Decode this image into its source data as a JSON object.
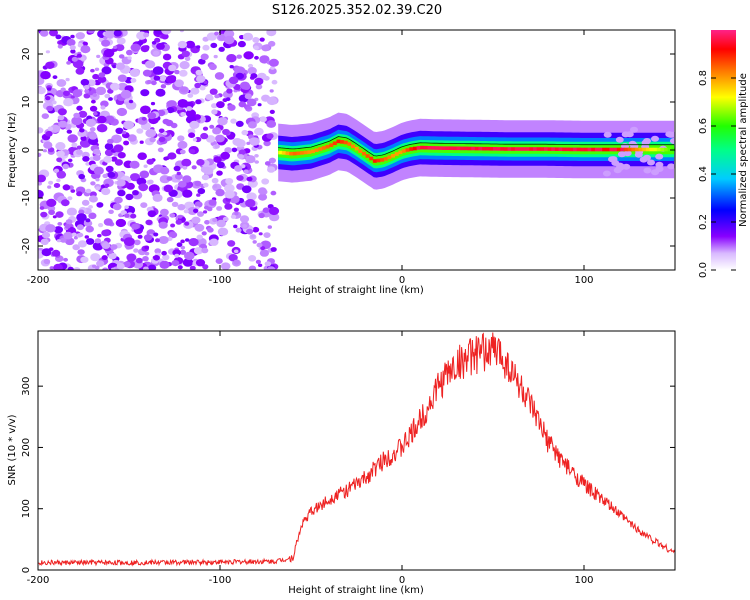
{
  "title": "S126.2025.352.02.39.C20",
  "chart_data": [
    {
      "type": "heatmap",
      "title": "S126.2025.352.02.39.C20",
      "xlabel": "Height of straight line (km)",
      "ylabel": "Frequency (Hz)",
      "xlim": [
        -200,
        150
      ],
      "ylim": [
        -25,
        25
      ],
      "xticks": [
        -200,
        -100,
        0,
        100
      ],
      "yticks": [
        -20,
        -10,
        0,
        10,
        20
      ],
      "colorbar": {
        "label": "Normalized spectral amplitude",
        "range": [
          0,
          1
        ],
        "ticks": [
          0.0,
          0.2,
          0.4,
          0.6,
          0.8
        ],
        "colormap": "rainbow (white-violet-blue-cyan-green-yellow-red-magenta)"
      },
      "noise_region_x": [
        -200,
        -70
      ],
      "signal_track": {
        "x": [
          -68,
          -60,
          -50,
          -40,
          -35,
          -30,
          -25,
          -20,
          -15,
          -10,
          -5,
          0,
          5,
          10,
          20,
          40,
          60,
          80,
          100,
          120,
          150
        ],
        "frequency": [
          -0.5,
          -0.8,
          -0.4,
          0.8,
          1.8,
          1.5,
          0.3,
          -1.0,
          -2.3,
          -2.0,
          -1.2,
          -0.3,
          0.2,
          0.5,
          0.4,
          0.3,
          0.2,
          0.2,
          0.1,
          0.1,
          0.1
        ],
        "peak_amplitude": [
          0.7,
          0.85,
          0.8,
          0.85,
          0.9,
          0.85,
          0.8,
          0.85,
          0.9,
          0.85,
          0.8,
          0.8,
          0.9,
          0.95,
          0.97,
          0.95,
          0.95,
          0.95,
          0.95,
          0.9,
          0.6
        ]
      }
    },
    {
      "type": "line",
      "xlabel": "Height of straight line (km)",
      "ylabel": "SNR (10 * v/v)",
      "xlim": [
        -200,
        150
      ],
      "ylim": [
        0,
        390
      ],
      "xticks": [
        -200,
        -100,
        0,
        100
      ],
      "yticks": [
        0,
        100,
        200,
        300
      ],
      "color": "#ee2222",
      "series": [
        {
          "x": [
            -200,
            -150,
            -100,
            -70,
            -60,
            -55,
            -50,
            -45,
            -40,
            -35,
            -30,
            -25,
            -20,
            -15,
            -10,
            -5,
            0,
            5,
            10,
            15,
            20,
            25,
            30,
            35,
            40,
            45,
            50,
            55,
            60,
            65,
            70,
            75,
            80,
            90,
            100,
            110,
            120,
            130,
            140,
            150
          ],
          "values": [
            12,
            12,
            13,
            14,
            20,
            75,
            95,
            105,
            115,
            125,
            130,
            140,
            150,
            165,
            180,
            190,
            200,
            220,
            245,
            270,
            300,
            320,
            335,
            345,
            350,
            355,
            360,
            350,
            325,
            300,
            270,
            240,
            210,
            170,
            140,
            115,
            90,
            65,
            45,
            28
          ]
        }
      ]
    }
  ]
}
